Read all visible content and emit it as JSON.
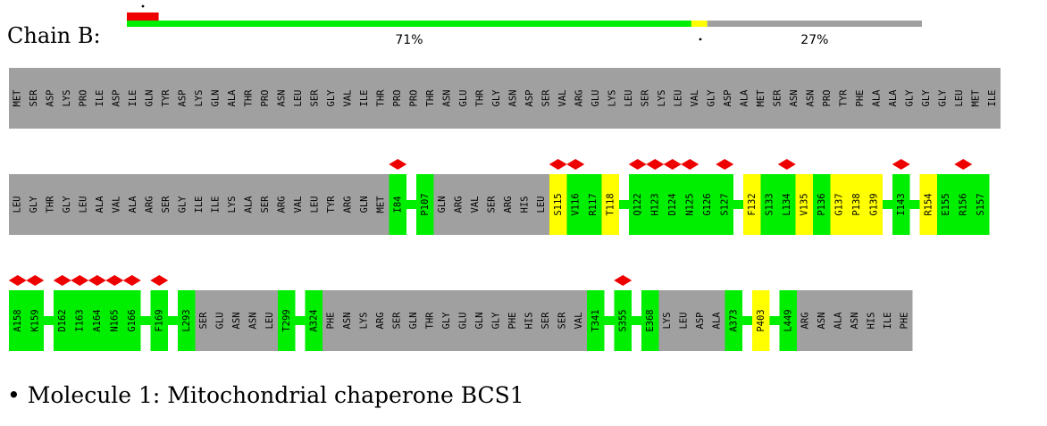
{
  "chain_label": "Chain B:",
  "quality_bar": {
    "segments": [
      {
        "fraction": 0.71,
        "color": "#00ee00"
      },
      {
        "fraction": 0.02,
        "color": "#ffff00"
      },
      {
        "fraction": 0.27,
        "color": "#a0a0a0"
      }
    ],
    "labels": [
      "71%",
      "27%"
    ],
    "red_marker": {
      "fraction": 0.04,
      "color": "#ee0000"
    }
  },
  "colors": {
    "green": "#00ee00",
    "yellow": "#ffff00",
    "grey": "#a0a0a0",
    "red": "#ee0000"
  },
  "rows": [
    {
      "blocks": [
        {
          "type": "grey",
          "labels": [
            "MET",
            "SER",
            "ASP",
            "LYS",
            "PRO",
            "ILE",
            "ASP",
            "ILE",
            "GLN",
            "TYR",
            "ASP",
            "LYS",
            "GLN",
            "ALA",
            "THR",
            "PRO",
            "ASN",
            "LEU",
            "SER",
            "GLY",
            "VAL",
            "ILE",
            "THR",
            "PRO",
            "PRO",
            "THR",
            "ASN",
            "GLU",
            "THR",
            "GLY",
            "ASN",
            "ASP",
            "SER",
            "VAL",
            "ARG",
            "GLU",
            "LYS",
            "LEU",
            "SER",
            "LYS",
            "LEU",
            "VAL",
            "GLY",
            "ASP",
            "ALA",
            "MET",
            "SER",
            "ASN",
            "ASN",
            "PRO",
            "TYR",
            "PHE",
            "ALA",
            "ALA",
            "GLY",
            "GLY",
            "GLY",
            "LEU",
            "MET",
            "ILE"
          ]
        }
      ]
    },
    {
      "blocks": [
        {
          "type": "grey",
          "labels": [
            "LEU",
            "GLY",
            "THR",
            "GLY",
            "LEU",
            "ALA",
            "VAL",
            "ALA",
            "ARG",
            "SER",
            "GLY",
            "ILE",
            "ILE",
            "LYS",
            "ALA",
            "SER",
            "ARG",
            "VAL",
            "LEU",
            "TYR",
            "ARG",
            "GLN",
            "MET"
          ]
        },
        {
          "type": "residues",
          "items": [
            {
              "label": "I84",
              "color": "green",
              "diamond": true
            }
          ]
        },
        {
          "type": "gap"
        },
        {
          "type": "residues",
          "items": [
            {
              "label": "P107",
              "color": "green"
            }
          ]
        },
        {
          "type": "grey",
          "labels": [
            "GLN",
            "ARG",
            "VAL",
            "SER",
            "ARG",
            "HIS",
            "LEU"
          ]
        },
        {
          "type": "residues",
          "items": [
            {
              "label": "S115",
              "color": "yellow",
              "diamond": true
            },
            {
              "label": "V116",
              "color": "green",
              "diamond": true
            },
            {
              "label": "R117",
              "color": "green"
            },
            {
              "label": "T118",
              "color": "yellow"
            }
          ]
        },
        {
          "type": "gap"
        },
        {
          "type": "residues",
          "items": [
            {
              "label": "Q122",
              "color": "green",
              "diamond": true
            },
            {
              "label": "H123",
              "color": "green",
              "diamond": true
            },
            {
              "label": "D124",
              "color": "green",
              "diamond": true
            },
            {
              "label": "N125",
              "color": "green",
              "diamond": true
            },
            {
              "label": "G126",
              "color": "green"
            },
            {
              "label": "S127",
              "color": "green",
              "diamond": true
            }
          ]
        },
        {
          "type": "gap"
        },
        {
          "type": "residues",
          "items": [
            {
              "label": "F132",
              "color": "yellow"
            },
            {
              "label": "S133",
              "color": "green"
            },
            {
              "label": "L134",
              "color": "green",
              "diamond": true
            },
            {
              "label": "V135",
              "color": "yellow"
            },
            {
              "label": "P136",
              "color": "green"
            },
            {
              "label": "G137",
              "color": "yellow"
            },
            {
              "label": "P138",
              "color": "yellow"
            },
            {
              "label": "G139",
              "color": "yellow"
            }
          ]
        },
        {
          "type": "gap"
        },
        {
          "type": "residues",
          "items": [
            {
              "label": "I143",
              "color": "green",
              "diamond": true
            }
          ]
        },
        {
          "type": "gap"
        },
        {
          "type": "residues",
          "items": [
            {
              "label": "R154",
              "color": "yellow"
            },
            {
              "label": "E155",
              "color": "green"
            },
            {
              "label": "R156",
              "color": "green",
              "diamond": true
            },
            {
              "label": "S157",
              "color": "green"
            }
          ]
        }
      ]
    },
    {
      "blocks": [
        {
          "type": "residues",
          "items": [
            {
              "label": "A158",
              "color": "green",
              "diamond": true
            },
            {
              "label": "K159",
              "color": "green",
              "diamond": true
            }
          ]
        },
        {
          "type": "gap"
        },
        {
          "type": "residues",
          "items": [
            {
              "label": "D162",
              "color": "green",
              "diamond": true
            },
            {
              "label": "I163",
              "color": "green",
              "diamond": true
            },
            {
              "label": "A164",
              "color": "green",
              "diamond": true
            },
            {
              "label": "N165",
              "color": "green",
              "diamond": true
            },
            {
              "label": "G166",
              "color": "green",
              "diamond": true
            }
          ]
        },
        {
          "type": "gap"
        },
        {
          "type": "residues",
          "items": [
            {
              "label": "F169",
              "color": "green",
              "diamond": true
            }
          ]
        },
        {
          "type": "gap"
        },
        {
          "type": "residues",
          "items": [
            {
              "label": "L293",
              "color": "green"
            }
          ]
        },
        {
          "type": "grey",
          "labels": [
            "SER",
            "GLU",
            "ASN",
            "ASN",
            "LEU"
          ]
        },
        {
          "type": "residues",
          "items": [
            {
              "label": "T299",
              "color": "green"
            }
          ]
        },
        {
          "type": "gap"
        },
        {
          "type": "residues",
          "items": [
            {
              "label": "A324",
              "color": "green"
            }
          ]
        },
        {
          "type": "grey",
          "labels": [
            "PHE",
            "ASN",
            "LYS",
            "ARG",
            "SER",
            "GLN",
            "THR",
            "GLY",
            "GLU",
            "GLN",
            "GLY",
            "PHE",
            "HIS",
            "SER",
            "SER",
            "VAL"
          ]
        },
        {
          "type": "residues",
          "items": [
            {
              "label": "T341",
              "color": "green"
            }
          ]
        },
        {
          "type": "gap"
        },
        {
          "type": "residues",
          "items": [
            {
              "label": "S355",
              "color": "green",
              "diamond": true
            }
          ]
        },
        {
          "type": "gap"
        },
        {
          "type": "residues",
          "items": [
            {
              "label": "E368",
              "color": "green"
            }
          ]
        },
        {
          "type": "grey",
          "labels": [
            "LYS",
            "LEU",
            "ASP",
            "ALA"
          ]
        },
        {
          "type": "residues",
          "items": [
            {
              "label": "A373",
              "color": "green"
            }
          ]
        },
        {
          "type": "gap"
        },
        {
          "type": "residues",
          "items": [
            {
              "label": "P403",
              "color": "yellow"
            }
          ]
        },
        {
          "type": "gap"
        },
        {
          "type": "residues",
          "items": [
            {
              "label": "L449",
              "color": "green"
            }
          ]
        },
        {
          "type": "grey",
          "labels": [
            "ARG",
            "ASN",
            "ALA",
            "ASN",
            "HIS",
            "ILE",
            "PHE"
          ]
        }
      ]
    }
  ],
  "molecule": {
    "bullet": "•",
    "text": "Molecule 1: Mitochondrial chaperone BCS1"
  }
}
